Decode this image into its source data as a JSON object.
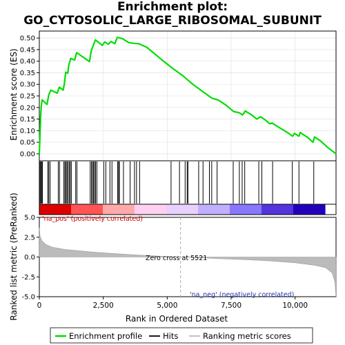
{
  "title_line1": "Enrichment plot:",
  "title_line2": "GO_CYTOSOLIC_LARGE_RIBOSOMAL_SUBUNIT",
  "chart_data": [
    {
      "type": "line",
      "name": "enrichment-profile",
      "ylabel": "Enrichment score (ES)",
      "xlim": [
        0,
        11600
      ],
      "ylim": [
        -0.03,
        0.53
      ],
      "yticks": [
        0.0,
        0.05,
        0.1,
        0.15,
        0.2,
        0.25,
        0.3,
        0.35,
        0.4,
        0.45,
        0.5
      ],
      "ytick_labels": [
        "0.00",
        "0.05",
        "0.10",
        "0.15",
        "0.20",
        "0.25",
        "0.30",
        "0.35",
        "0.40",
        "0.45",
        "0.50"
      ],
      "color": "#00dd00",
      "grid": true,
      "points": [
        [
          0,
          0.0
        ],
        [
          25,
          0.08
        ],
        [
          50,
          0.16
        ],
        [
          80,
          0.21
        ],
        [
          110,
          0.233
        ],
        [
          300,
          0.213
        ],
        [
          370,
          0.255
        ],
        [
          450,
          0.275
        ],
        [
          700,
          0.262
        ],
        [
          780,
          0.288
        ],
        [
          930,
          0.275
        ],
        [
          980,
          0.302
        ],
        [
          1030,
          0.352
        ],
        [
          1110,
          0.348
        ],
        [
          1150,
          0.382
        ],
        [
          1230,
          0.412
        ],
        [
          1380,
          0.405
        ],
        [
          1460,
          0.437
        ],
        [
          1960,
          0.398
        ],
        [
          2030,
          0.445
        ],
        [
          2110,
          0.468
        ],
        [
          2190,
          0.492
        ],
        [
          2460,
          0.468
        ],
        [
          2560,
          0.483
        ],
        [
          2700,
          0.473
        ],
        [
          2800,
          0.485
        ],
        [
          2950,
          0.475
        ],
        [
          3050,
          0.503
        ],
        [
          3250,
          0.497
        ],
        [
          3500,
          0.48
        ],
        [
          3700,
          0.477
        ],
        [
          3900,
          0.475
        ],
        [
          4200,
          0.46
        ],
        [
          4800,
          0.405
        ],
        [
          5200,
          0.37
        ],
        [
          5600,
          0.338
        ],
        [
          6000,
          0.3
        ],
        [
          6400,
          0.268
        ],
        [
          6750,
          0.24
        ],
        [
          7000,
          0.232
        ],
        [
          7300,
          0.21
        ],
        [
          7600,
          0.182
        ],
        [
          7800,
          0.178
        ],
        [
          7950,
          0.168
        ],
        [
          8050,
          0.185
        ],
        [
          8300,
          0.168
        ],
        [
          8500,
          0.15
        ],
        [
          8650,
          0.16
        ],
        [
          8850,
          0.145
        ],
        [
          9000,
          0.13
        ],
        [
          9100,
          0.133
        ],
        [
          9400,
          0.112
        ],
        [
          9700,
          0.092
        ],
        [
          9900,
          0.076
        ],
        [
          9980,
          0.088
        ],
        [
          10150,
          0.076
        ],
        [
          10200,
          0.092
        ],
        [
          10500,
          0.07
        ],
        [
          10700,
          0.05
        ],
        [
          10760,
          0.073
        ],
        [
          11000,
          0.055
        ],
        [
          11300,
          0.025
        ],
        [
          11600,
          0.0
        ]
      ]
    },
    {
      "type": "hits",
      "name": "hits",
      "positions": [
        30,
        60,
        90,
        120,
        330,
        370,
        420,
        740,
        790,
        960,
        1000,
        1040,
        1080,
        1120,
        1170,
        1210,
        1250,
        1420,
        1470,
        1990,
        2040,
        2080,
        2120,
        2160,
        2200,
        2250,
        2520,
        2600,
        2760,
        2840,
        3060,
        3100,
        3130,
        3290,
        3550,
        3720,
        3800,
        3920,
        5150,
        5480,
        5700,
        5780,
        5810,
        6230,
        6400,
        6650,
        6740,
        6950,
        7580,
        7820,
        7930,
        8030,
        8580,
        8700,
        9120,
        9890,
        10150,
        10730
      ]
    },
    {
      "type": "heatmap",
      "name": "rank-color-bar",
      "stops": [
        "#dd0000",
        "#ff5555",
        "#ffaaaa",
        "#ffd0f0",
        "#e8d0ff",
        "#c0b0ff",
        "#8877ff",
        "#5533dd",
        "#2200bb"
      ]
    },
    {
      "type": "area",
      "name": "ranked-list-metric",
      "xlabel": "Rank in Ordered Dataset",
      "ylabel": "Ranked list metric (PreRanked)",
      "xlim": [
        0,
        11600
      ],
      "ylim": [
        -5.0,
        5.0
      ],
      "xticks": [
        0,
        2500,
        5000,
        7500,
        10000
      ],
      "xtick_labels": [
        "0",
        "2,500",
        "5,000",
        "7,500",
        "10,000"
      ],
      "yticks": [
        5.0,
        2.5,
        0.0,
        -2.5,
        -5.0
      ],
      "ytick_labels": [
        "5.0",
        "2.5",
        "0.0",
        "-2.5",
        "-5.0"
      ],
      "color": "#bbbbbb",
      "zero_cross": 5521,
      "points": [
        [
          0,
          3.7
        ],
        [
          30,
          2.6
        ],
        [
          100,
          2.05
        ],
        [
          250,
          1.6
        ],
        [
          500,
          1.25
        ],
        [
          1000,
          0.95
        ],
        [
          2000,
          0.65
        ],
        [
          3000,
          0.42
        ],
        [
          4000,
          0.22
        ],
        [
          5000,
          0.06
        ],
        [
          5521,
          0.0
        ],
        [
          6000,
          -0.05
        ],
        [
          7000,
          -0.2
        ],
        [
          8000,
          -0.32
        ],
        [
          9000,
          -0.48
        ],
        [
          10000,
          -0.72
        ],
        [
          10800,
          -1.05
        ],
        [
          11200,
          -1.35
        ],
        [
          11450,
          -2.0
        ],
        [
          11560,
          -3.2
        ],
        [
          11600,
          -5.0
        ]
      ]
    }
  ],
  "annotations": {
    "pos_label": "'na_pos' (positively correlated)",
    "zero_cross_label": "Zero cross at 5521",
    "neg_label": "'na_neg' (negatively correlated)"
  },
  "legend": {
    "items": [
      {
        "label": "Enrichment profile",
        "color": "#00dd00"
      },
      {
        "label": "Hits",
        "color": "#000000"
      },
      {
        "label": "Ranking metric scores",
        "color": "#bbbbbb"
      }
    ]
  }
}
